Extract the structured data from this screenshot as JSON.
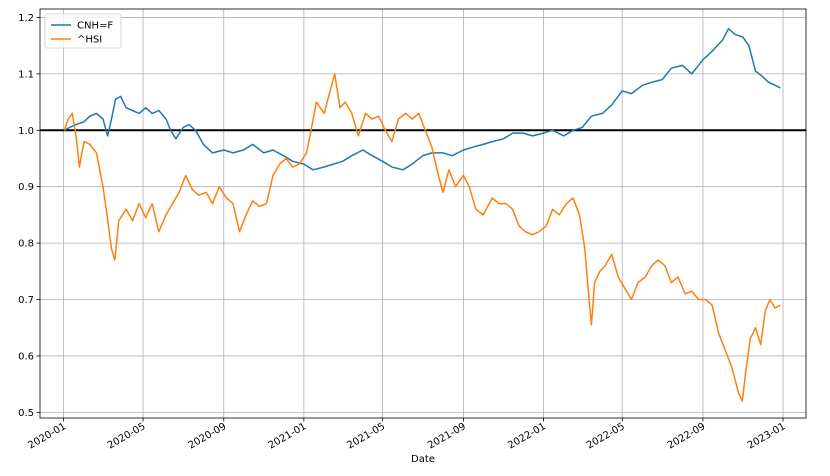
{
  "chart_data": {
    "type": "line",
    "xlabel": "Date",
    "ylabel": "",
    "title": "",
    "xlim": [
      "2019-11-26",
      "2023-02-05"
    ],
    "ylim": [
      0.49,
      1.215
    ],
    "grid": true,
    "legend": "top-left",
    "reference_line": {
      "y": 1.0,
      "color": "#000000"
    },
    "x_ticks": [
      "2020-01",
      "2020-05",
      "2020-09",
      "2021-01",
      "2021-05",
      "2021-09",
      "2022-01",
      "2022-05",
      "2022-09",
      "2023-01"
    ],
    "y_ticks": [
      "0.5",
      "0.6",
      "0.7",
      "0.8",
      "0.9",
      "1.0",
      "1.1",
      "1.2"
    ],
    "series": [
      {
        "name": "CNH=F",
        "color": "#1f77b4",
        "points": [
          [
            "2020-01-02",
            1.0
          ],
          [
            "2020-01-10",
            1.005
          ],
          [
            "2020-01-20",
            1.01
          ],
          [
            "2020-02-01",
            1.015
          ],
          [
            "2020-02-10",
            1.025
          ],
          [
            "2020-02-20",
            1.03
          ],
          [
            "2020-03-01",
            1.02
          ],
          [
            "2020-03-08",
            0.99
          ],
          [
            "2020-03-14",
            1.02
          ],
          [
            "2020-03-20",
            1.055
          ],
          [
            "2020-03-28",
            1.06
          ],
          [
            "2020-04-05",
            1.04
          ],
          [
            "2020-04-15",
            1.035
          ],
          [
            "2020-04-25",
            1.03
          ],
          [
            "2020-05-05",
            1.04
          ],
          [
            "2020-05-15",
            1.03
          ],
          [
            "2020-05-25",
            1.035
          ],
          [
            "2020-06-05",
            1.02
          ],
          [
            "2020-06-12",
            1.0
          ],
          [
            "2020-06-20",
            0.985
          ],
          [
            "2020-07-01",
            1.005
          ],
          [
            "2020-07-10",
            1.01
          ],
          [
            "2020-07-20",
            1.0
          ],
          [
            "2020-08-01",
            0.975
          ],
          [
            "2020-08-15",
            0.96
          ],
          [
            "2020-09-01",
            0.965
          ],
          [
            "2020-09-15",
            0.96
          ],
          [
            "2020-10-01",
            0.965
          ],
          [
            "2020-10-15",
            0.975
          ],
          [
            "2020-11-01",
            0.96
          ],
          [
            "2020-11-15",
            0.965
          ],
          [
            "2020-12-01",
            0.955
          ],
          [
            "2020-12-15",
            0.945
          ],
          [
            "2021-01-01",
            0.94
          ],
          [
            "2021-01-15",
            0.93
          ],
          [
            "2021-02-01",
            0.935
          ],
          [
            "2021-02-15",
            0.94
          ],
          [
            "2021-03-01",
            0.945
          ],
          [
            "2021-03-15",
            0.955
          ],
          [
            "2021-04-01",
            0.965
          ],
          [
            "2021-04-15",
            0.955
          ],
          [
            "2021-05-01",
            0.945
          ],
          [
            "2021-05-15",
            0.935
          ],
          [
            "2021-06-01",
            0.93
          ],
          [
            "2021-06-15",
            0.94
          ],
          [
            "2021-07-01",
            0.955
          ],
          [
            "2021-07-15",
            0.96
          ],
          [
            "2021-08-01",
            0.96
          ],
          [
            "2021-08-15",
            0.955
          ],
          [
            "2021-09-01",
            0.965
          ],
          [
            "2021-09-15",
            0.97
          ],
          [
            "2021-10-01",
            0.975
          ],
          [
            "2021-10-15",
            0.98
          ],
          [
            "2021-11-01",
            0.985
          ],
          [
            "2021-11-15",
            0.995
          ],
          [
            "2021-12-01",
            0.995
          ],
          [
            "2021-12-15",
            0.99
          ],
          [
            "2022-01-01",
            0.995
          ],
          [
            "2022-01-15",
            1.0
          ],
          [
            "2022-02-01",
            0.99
          ],
          [
            "2022-02-15",
            1.0
          ],
          [
            "2022-03-01",
            1.005
          ],
          [
            "2022-03-15",
            1.025
          ],
          [
            "2022-04-01",
            1.03
          ],
          [
            "2022-04-15",
            1.045
          ],
          [
            "2022-05-01",
            1.07
          ],
          [
            "2022-05-15",
            1.065
          ],
          [
            "2022-06-01",
            1.08
          ],
          [
            "2022-06-15",
            1.085
          ],
          [
            "2022-07-01",
            1.09
          ],
          [
            "2022-07-15",
            1.11
          ],
          [
            "2022-08-01",
            1.115
          ],
          [
            "2022-08-15",
            1.1
          ],
          [
            "2022-09-01",
            1.125
          ],
          [
            "2022-09-15",
            1.14
          ],
          [
            "2022-10-01",
            1.16
          ],
          [
            "2022-10-10",
            1.18
          ],
          [
            "2022-10-20",
            1.17
          ],
          [
            "2022-11-01",
            1.165
          ],
          [
            "2022-11-10",
            1.15
          ],
          [
            "2022-11-20",
            1.105
          ],
          [
            "2022-12-01",
            1.095
          ],
          [
            "2022-12-10",
            1.085
          ],
          [
            "2022-12-20",
            1.08
          ],
          [
            "2022-12-28",
            1.075
          ]
        ]
      },
      {
        "name": "^HSI",
        "color": "#ff7f0e",
        "points": [
          [
            "2020-01-02",
            1.0
          ],
          [
            "2020-01-08",
            1.02
          ],
          [
            "2020-01-14",
            1.03
          ],
          [
            "2020-01-20",
            0.99
          ],
          [
            "2020-01-25",
            0.935
          ],
          [
            "2020-02-01",
            0.98
          ],
          [
            "2020-02-10",
            0.975
          ],
          [
            "2020-02-20",
            0.96
          ],
          [
            "2020-03-01",
            0.9
          ],
          [
            "2020-03-07",
            0.85
          ],
          [
            "2020-03-14",
            0.79
          ],
          [
            "2020-03-19",
            0.77
          ],
          [
            "2020-03-25",
            0.84
          ],
          [
            "2020-04-05",
            0.86
          ],
          [
            "2020-04-15",
            0.84
          ],
          [
            "2020-04-25",
            0.87
          ],
          [
            "2020-05-05",
            0.845
          ],
          [
            "2020-05-15",
            0.87
          ],
          [
            "2020-05-25",
            0.82
          ],
          [
            "2020-06-05",
            0.85
          ],
          [
            "2020-06-15",
            0.87
          ],
          [
            "2020-06-25",
            0.89
          ],
          [
            "2020-07-05",
            0.92
          ],
          [
            "2020-07-15",
            0.895
          ],
          [
            "2020-07-25",
            0.885
          ],
          [
            "2020-08-05",
            0.89
          ],
          [
            "2020-08-15",
            0.87
          ],
          [
            "2020-08-25",
            0.9
          ],
          [
            "2020-09-05",
            0.88
          ],
          [
            "2020-09-15",
            0.87
          ],
          [
            "2020-09-25",
            0.82
          ],
          [
            "2020-10-05",
            0.85
          ],
          [
            "2020-10-15",
            0.875
          ],
          [
            "2020-10-25",
            0.865
          ],
          [
            "2020-11-05",
            0.87
          ],
          [
            "2020-11-15",
            0.92
          ],
          [
            "2020-11-25",
            0.94
          ],
          [
            "2020-12-05",
            0.95
          ],
          [
            "2020-12-15",
            0.935
          ],
          [
            "2020-12-25",
            0.94
          ],
          [
            "2021-01-05",
            0.96
          ],
          [
            "2021-01-12",
            1.0
          ],
          [
            "2021-01-20",
            1.05
          ],
          [
            "2021-02-01",
            1.03
          ],
          [
            "2021-02-10",
            1.07
          ],
          [
            "2021-02-17",
            1.1
          ],
          [
            "2021-02-25",
            1.04
          ],
          [
            "2021-03-05",
            1.05
          ],
          [
            "2021-03-15",
            1.03
          ],
          [
            "2021-03-25",
            0.99
          ],
          [
            "2021-04-05",
            1.03
          ],
          [
            "2021-04-15",
            1.02
          ],
          [
            "2021-04-25",
            1.025
          ],
          [
            "2021-05-05",
            1.0
          ],
          [
            "2021-05-15",
            0.98
          ],
          [
            "2021-05-25",
            1.02
          ],
          [
            "2021-06-05",
            1.03
          ],
          [
            "2021-06-15",
            1.02
          ],
          [
            "2021-06-25",
            1.03
          ],
          [
            "2021-07-05",
            1.0
          ],
          [
            "2021-07-15",
            0.97
          ],
          [
            "2021-07-25",
            0.92
          ],
          [
            "2021-08-01",
            0.89
          ],
          [
            "2021-08-10",
            0.93
          ],
          [
            "2021-08-20",
            0.9
          ],
          [
            "2021-09-01",
            0.92
          ],
          [
            "2021-09-10",
            0.9
          ],
          [
            "2021-09-20",
            0.86
          ],
          [
            "2021-10-01",
            0.85
          ],
          [
            "2021-10-15",
            0.88
          ],
          [
            "2021-10-25",
            0.87
          ],
          [
            "2021-11-05",
            0.87
          ],
          [
            "2021-11-15",
            0.86
          ],
          [
            "2021-11-25",
            0.83
          ],
          [
            "2021-12-05",
            0.82
          ],
          [
            "2021-12-15",
            0.815
          ],
          [
            "2021-12-25",
            0.82
          ],
          [
            "2022-01-05",
            0.83
          ],
          [
            "2022-01-15",
            0.86
          ],
          [
            "2022-01-25",
            0.85
          ],
          [
            "2022-02-05",
            0.87
          ],
          [
            "2022-02-15",
            0.88
          ],
          [
            "2022-02-25",
            0.85
          ],
          [
            "2022-03-05",
            0.79
          ],
          [
            "2022-03-10",
            0.72
          ],
          [
            "2022-03-15",
            0.655
          ],
          [
            "2022-03-20",
            0.73
          ],
          [
            "2022-03-28",
            0.75
          ],
          [
            "2022-04-05",
            0.76
          ],
          [
            "2022-04-15",
            0.78
          ],
          [
            "2022-04-25",
            0.74
          ],
          [
            "2022-05-05",
            0.72
          ],
          [
            "2022-05-15",
            0.7
          ],
          [
            "2022-05-25",
            0.73
          ],
          [
            "2022-06-05",
            0.74
          ],
          [
            "2022-06-15",
            0.76
          ],
          [
            "2022-06-25",
            0.77
          ],
          [
            "2022-07-05",
            0.76
          ],
          [
            "2022-07-15",
            0.73
          ],
          [
            "2022-07-25",
            0.74
          ],
          [
            "2022-08-05",
            0.71
          ],
          [
            "2022-08-15",
            0.715
          ],
          [
            "2022-08-25",
            0.7
          ],
          [
            "2022-09-05",
            0.7
          ],
          [
            "2022-09-15",
            0.69
          ],
          [
            "2022-09-25",
            0.64
          ],
          [
            "2022-10-05",
            0.61
          ],
          [
            "2022-10-15",
            0.58
          ],
          [
            "2022-10-25",
            0.535
          ],
          [
            "2022-10-31",
            0.52
          ],
          [
            "2022-11-05",
            0.57
          ],
          [
            "2022-11-12",
            0.63
          ],
          [
            "2022-11-20",
            0.65
          ],
          [
            "2022-11-28",
            0.62
          ],
          [
            "2022-12-05",
            0.68
          ],
          [
            "2022-12-12",
            0.7
          ],
          [
            "2022-12-20",
            0.685
          ],
          [
            "2022-12-28",
            0.69
          ]
        ]
      }
    ]
  }
}
